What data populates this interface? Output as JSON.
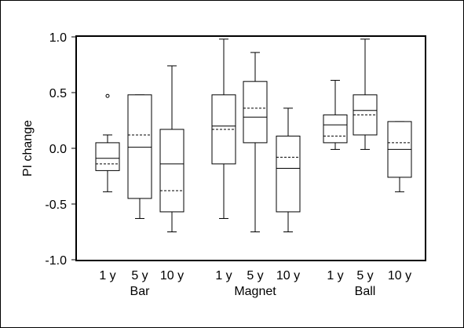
{
  "chart_data": {
    "type": "box",
    "ylabel": "PI change",
    "ylim": [
      -1.0,
      1.0
    ],
    "yticks": [
      {
        "value": 1.0,
        "label": "1.0"
      },
      {
        "value": 0.5,
        "label": "0.5"
      },
      {
        "value": 0.0,
        "label": "0.0"
      },
      {
        "value": -0.5,
        "label": "-0.5"
      },
      {
        "value": -1.0,
        "label": "-1.0"
      }
    ],
    "groups": [
      {
        "name": "Bar",
        "boxes": [
          {
            "label": "1 y",
            "min": -0.39,
            "q1": -0.2,
            "median": -0.09,
            "mean": -0.14,
            "q3": 0.05,
            "max": 0.12,
            "outliers": [
              0.47
            ]
          },
          {
            "label": "5 y",
            "min": -0.63,
            "q1": -0.45,
            "median": 0.01,
            "mean": 0.12,
            "q3": 0.48,
            "max": 0.48,
            "outliers": []
          },
          {
            "label": "10 y",
            "min": -0.75,
            "q1": -0.57,
            "median": -0.14,
            "mean": -0.38,
            "q3": 0.17,
            "max": 0.74,
            "outliers": []
          }
        ]
      },
      {
        "name": "Magnet",
        "boxes": [
          {
            "label": "1 y",
            "min": -0.63,
            "q1": -0.14,
            "median": 0.2,
            "mean": 0.17,
            "q3": 0.48,
            "max": 0.98,
            "outliers": []
          },
          {
            "label": "5 y",
            "min": -0.75,
            "q1": 0.05,
            "median": 0.28,
            "mean": 0.36,
            "q3": 0.6,
            "max": 0.86,
            "outliers": []
          },
          {
            "label": "10 y",
            "min": -0.75,
            "q1": -0.57,
            "median": -0.18,
            "mean": -0.08,
            "q3": 0.11,
            "max": 0.36,
            "outliers": []
          }
        ]
      },
      {
        "name": "Ball",
        "boxes": [
          {
            "label": "1 y",
            "min": -0.01,
            "q1": 0.05,
            "median": 0.21,
            "mean": 0.11,
            "q3": 0.3,
            "max": 0.61,
            "outliers": []
          },
          {
            "label": "5 y",
            "min": -0.01,
            "q1": 0.12,
            "median": 0.34,
            "mean": 0.3,
            "q3": 0.48,
            "max": 0.98,
            "outliers": []
          },
          {
            "label": "10 y",
            "min": -0.39,
            "q1": -0.26,
            "median": -0.01,
            "mean": 0.05,
            "q3": 0.24,
            "max": 0.24,
            "outliers": []
          }
        ]
      }
    ],
    "legend": "none",
    "grid": false
  }
}
